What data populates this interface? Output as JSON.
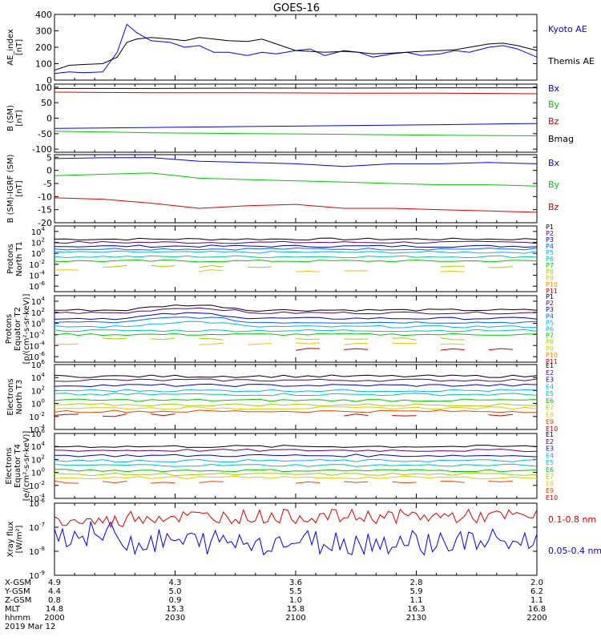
{
  "title": "GOES-16",
  "chart_data": [
    {
      "type": "line",
      "ylabel": "AE_index [nT]",
      "ylim": [
        0,
        400
      ],
      "yticks": [
        "0",
        "100",
        "200",
        "300",
        "400"
      ],
      "x": [
        0,
        0.03,
        0.06,
        0.1,
        0.13,
        0.15,
        0.17,
        0.2,
        0.24,
        0.27,
        0.3,
        0.33,
        0.36,
        0.4,
        0.43,
        0.46,
        0.5,
        0.53,
        0.56,
        0.6,
        0.63,
        0.66,
        0.7,
        0.73,
        0.76,
        0.8,
        0.83,
        0.86,
        0.9,
        0.93,
        0.96,
        1.0
      ],
      "series": [
        {
          "name": "Kyoto AE",
          "color": "#0000ff",
          "values": [
            40,
            50,
            45,
            50,
            170,
            340,
            290,
            240,
            230,
            200,
            210,
            170,
            170,
            150,
            170,
            160,
            180,
            190,
            150,
            180,
            170,
            140,
            160,
            170,
            150,
            160,
            180,
            170,
            200,
            210,
            190,
            140
          ]
        },
        {
          "name": "Themis AE",
          "color": "#000000",
          "values": [
            60,
            90,
            95,
            100,
            140,
            230,
            250,
            260,
            250,
            240,
            260,
            250,
            240,
            235,
            250,
            220,
            180,
            175,
            170,
            175,
            170,
            160,
            165,
            170,
            175,
            180,
            185,
            200,
            220,
            225,
            210,
            180
          ]
        }
      ]
    },
    {
      "type": "line",
      "ylabel": "B (SM) [nT]",
      "ylim": [
        -110,
        110
      ],
      "yticks": [
        "-100",
        "-50",
        "0",
        "50",
        "100"
      ],
      "x": [
        0,
        0.2,
        0.4,
        0.6,
        0.8,
        1.0
      ],
      "series": [
        {
          "name": "Bx",
          "color": "#0000ff",
          "values": [
            -33,
            -30,
            -27,
            -24,
            -21,
            -17
          ]
        },
        {
          "name": "By",
          "color": "#00c800",
          "values": [
            -42,
            -47,
            -50,
            -52,
            -55,
            -57
          ]
        },
        {
          "name": "Bz",
          "color": "#e00000",
          "values": [
            84,
            82,
            82,
            81,
            81,
            79
          ]
        },
        {
          "name": "Bmag",
          "color": "#000000",
          "values": [
            96,
            96,
            97,
            97,
            98,
            98
          ]
        }
      ]
    },
    {
      "type": "line",
      "ylabel": "B (SM)-IGRF (SM) [nT]",
      "ylim": [
        -20,
        6
      ],
      "yticks": [
        "-20",
        "-15",
        "-10",
        "-5",
        "0",
        "5"
      ],
      "x": [
        0,
        0.1,
        0.2,
        0.3,
        0.4,
        0.5,
        0.6,
        0.7,
        0.8,
        0.9,
        1.0
      ],
      "series": [
        {
          "name": "Bx",
          "color": "#0000ff",
          "values": [
            4.5,
            4.8,
            4.9,
            3.5,
            3.0,
            2.5,
            1.5,
            2.5,
            2.5,
            3.0,
            2.5
          ]
        },
        {
          "name": "By",
          "color": "#00c800",
          "values": [
            -2.0,
            -1.5,
            -1.0,
            -3.0,
            -3.5,
            -4.0,
            -4.5,
            -5.0,
            -5.5,
            -5.5,
            -6.0
          ]
        },
        {
          "name": "Bz",
          "color": "#e00000",
          "values": [
            -10.5,
            -11.0,
            -12.5,
            -14.5,
            -13.5,
            -13.0,
            -14.5,
            -14.5,
            -15.0,
            -15.5,
            -16.0
          ]
        }
      ]
    },
    {
      "type": "line",
      "ylabel": "Protons North T1",
      "ylim": [
        -7,
        5
      ],
      "yticks": [
        "10-6",
        "10-4",
        "10-2",
        "100",
        "102",
        "104"
      ],
      "series_labels": [
        "P1",
        "P2",
        "P3",
        "P4",
        "P5",
        "P6",
        "P7",
        "P8",
        "P9",
        "P10",
        "P11"
      ],
      "series_colors": [
        "#000000",
        "#5a0070",
        "#0000c8",
        "#0064ff",
        "#00b4ff",
        "#00c8a0",
        "#00c800",
        "#a0d200",
        "#e6c800",
        "#ff8c00",
        "#c80000"
      ]
    },
    {
      "type": "line",
      "ylabel": "Protons Equator T2 [p/(cm2-s-sr-keV)]",
      "ylim": [
        -7,
        5
      ],
      "yticks": [
        "10-6",
        "10-4",
        "10-2",
        "100",
        "102",
        "104"
      ],
      "series_labels": [
        "P1",
        "P2",
        "P3",
        "P4",
        "P5",
        "P6",
        "P7",
        "P8",
        "P9",
        "P10",
        "P11"
      ],
      "series_colors": [
        "#000000",
        "#5a0070",
        "#0000c8",
        "#0064ff",
        "#00b4ff",
        "#00c8a0",
        "#00c800",
        "#a0d200",
        "#e6c800",
        "#ff8c00",
        "#c80000"
      ]
    },
    {
      "type": "line",
      "ylabel": "Electrons North T3",
      "ylim": [
        -4,
        6
      ],
      "yticks": [
        "10-4",
        "10-2",
        "100",
        "102",
        "104",
        "106"
      ],
      "series_labels": [
        "E1",
        "E2",
        "E3",
        "E4",
        "E5",
        "E6",
        "E7",
        "E8",
        "E9",
        "E10"
      ],
      "series_colors": [
        "#000000",
        "#5a0070",
        "#0000c8",
        "#00b4ff",
        "#00c8a0",
        "#00c800",
        "#a0d200",
        "#e6c800",
        "#e64600",
        "#c80000"
      ]
    },
    {
      "type": "line",
      "ylabel": "Electrons Equator T4 [e/(cm2-s-sr-keV)]",
      "ylim": [
        -4,
        6
      ],
      "yticks": [
        "10-4",
        "10-2",
        "100",
        "102",
        "104",
        "106"
      ],
      "series_labels": [
        "E1",
        "E2",
        "E3",
        "E4",
        "E5",
        "E6",
        "E7",
        "E8",
        "E9",
        "E10"
      ],
      "series_colors": [
        "#000000",
        "#5a0070",
        "#0000c8",
        "#00b4ff",
        "#00c8a0",
        "#00c800",
        "#a0d200",
        "#e6c800",
        "#e64600",
        "#c80000"
      ]
    },
    {
      "type": "line",
      "ylabel": "Xray flux [W/m2]",
      "ylim": [
        -9,
        -6
      ],
      "yticks": [
        "10-9",
        "10-8",
        "10-7",
        "10-6"
      ],
      "series": [
        {
          "name": "0.1-0.8 nm",
          "color": "#e00000"
        },
        {
          "name": "0.05-0.4 nm",
          "color": "#0000ff"
        }
      ]
    }
  ],
  "footer": {
    "row_labels": [
      "X-GSM",
      "Y-GSM",
      "Z-GSM",
      "MLT",
      "hhmm",
      "2019 Mar 12"
    ],
    "columns": [
      {
        "x_gsm": "4.9",
        "y_gsm": "4.4",
        "z_gsm": "0.8",
        "mlt": "14.8",
        "hhmm": "2000"
      },
      {
        "x_gsm": "4.3",
        "y_gsm": "5.0",
        "z_gsm": "0.9",
        "mlt": "15.3",
        "hhmm": "2030"
      },
      {
        "x_gsm": "3.6",
        "y_gsm": "5.5",
        "z_gsm": "1.0",
        "mlt": "15.8",
        "hhmm": "2100"
      },
      {
        "x_gsm": "2.8",
        "y_gsm": "5.9",
        "z_gsm": "1.1",
        "mlt": "16.3",
        "hhmm": "2130"
      },
      {
        "x_gsm": "2.0",
        "y_gsm": "6.2",
        "z_gsm": "1.1",
        "mlt": "16.8",
        "hhmm": "2200"
      }
    ]
  }
}
